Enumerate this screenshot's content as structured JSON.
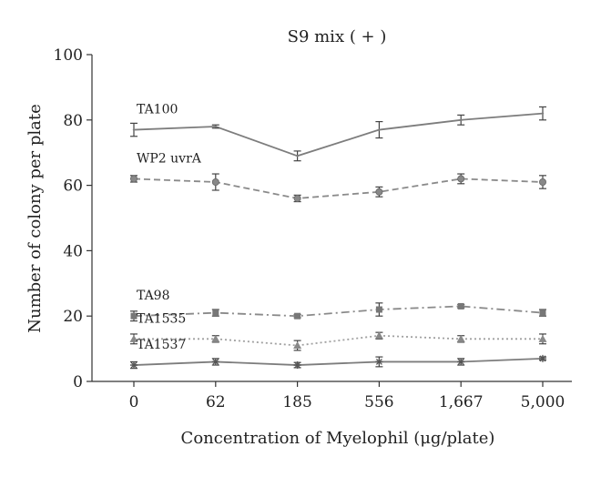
{
  "chart_data": {
    "type": "line",
    "title": "S9 mix ( + )",
    "xlabel": "Concentration of Myelophil (μg/plate)",
    "ylabel": "Number of colony per plate",
    "categories": [
      "0",
      "62",
      "185",
      "556",
      "1,667",
      "5,000"
    ],
    "ylim": [
      0,
      100
    ],
    "yticks": [
      "0",
      "20",
      "40",
      "60",
      "80",
      "100"
    ],
    "grid": false,
    "series": [
      {
        "name": "TA100",
        "values": [
          77,
          78,
          69,
          77,
          80,
          82
        ],
        "errors": [
          2,
          0.5,
          1.5,
          2.5,
          1.5,
          2
        ],
        "color": "#7d7d7d",
        "dash": "solid",
        "marker": "none"
      },
      {
        "name": "WP2 uvrA",
        "values": [
          62,
          61,
          56,
          58,
          62,
          61
        ],
        "errors": [
          1,
          2.5,
          1,
          1.5,
          1.5,
          2
        ],
        "color": "#8a8a8a",
        "dash": "dashed",
        "marker": "circle"
      },
      {
        "name": "TA98",
        "values": [
          20,
          21,
          20,
          22,
          23,
          21
        ],
        "errors": [
          1.5,
          1,
          0.5,
          2,
          0.5,
          1
        ],
        "color": "#8a8a8a",
        "dash": "dashdot",
        "marker": "square"
      },
      {
        "name": "TA1535",
        "values": [
          13,
          13,
          11,
          14,
          13,
          13
        ],
        "errors": [
          1.5,
          1,
          1.5,
          1,
          1,
          1.5
        ],
        "color": "#a0a0a0",
        "dash": "dotted",
        "marker": "triangle"
      },
      {
        "name": "TA1537",
        "values": [
          5,
          6,
          5,
          6,
          6,
          7
        ],
        "errors": [
          1,
          1,
          0.8,
          1.5,
          1,
          0.5
        ],
        "color": "#7d7d7d",
        "dash": "solid",
        "marker": "star"
      }
    ]
  }
}
